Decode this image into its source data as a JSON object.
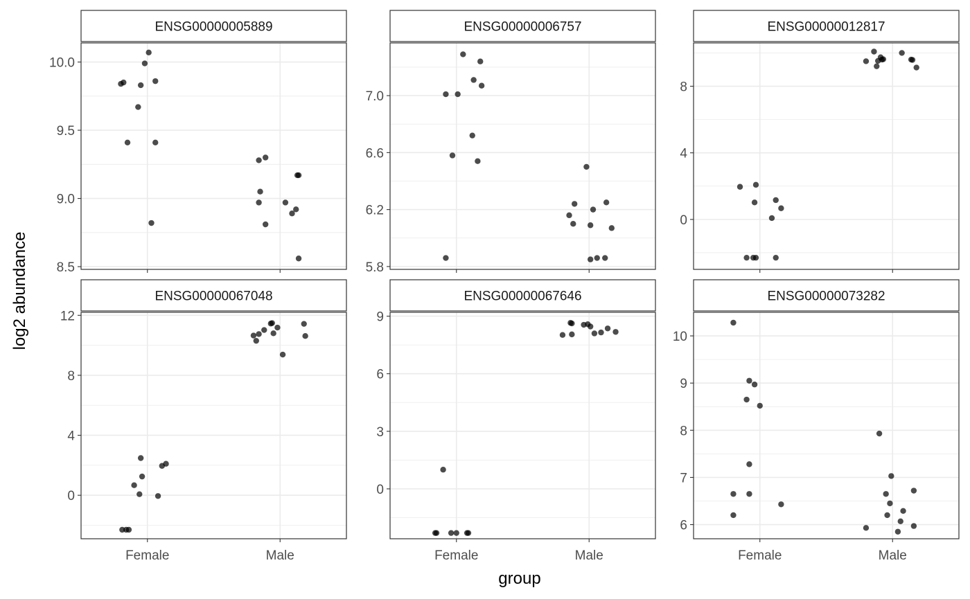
{
  "chart_data": {
    "type": "scatter",
    "xlabel": "group",
    "ylabel": "log2 abundance",
    "categories": [
      "Female",
      "Male"
    ],
    "grid": true,
    "point_color": "#000000",
    "panel_border_color": "#333333",
    "strip_fill": "#ffffff",
    "gridline_color": "#ebebeb",
    "panels": [
      {
        "id": "ENSG00000005889",
        "ylim": [
          8.48,
          10.14
        ],
        "yticks": [
          8.5,
          9.0,
          9.5,
          10.0
        ],
        "ytick_labels": [
          "8.5",
          "9.0",
          "9.5",
          "10.0"
        ],
        "x_tick_labels_shown": false,
        "points": [
          {
            "group": "Female",
            "jitter": -0.2,
            "y": 9.84
          },
          {
            "group": "Female",
            "jitter": -0.18,
            "y": 9.85
          },
          {
            "group": "Female",
            "jitter": -0.15,
            "y": 9.41
          },
          {
            "group": "Female",
            "jitter": -0.07,
            "y": 9.67
          },
          {
            "group": "Female",
            "jitter": -0.05,
            "y": 9.83
          },
          {
            "group": "Female",
            "jitter": -0.02,
            "y": 9.99
          },
          {
            "group": "Female",
            "jitter": 0.01,
            "y": 10.07
          },
          {
            "group": "Female",
            "jitter": 0.03,
            "y": 8.82
          },
          {
            "group": "Female",
            "jitter": 0.06,
            "y": 9.86
          },
          {
            "group": "Female",
            "jitter": 0.06,
            "y": 9.41
          },
          {
            "group": "Male",
            "jitter": -0.16,
            "y": 9.28
          },
          {
            "group": "Male",
            "jitter": -0.15,
            "y": 9.05
          },
          {
            "group": "Male",
            "jitter": -0.16,
            "y": 8.97
          },
          {
            "group": "Male",
            "jitter": -0.11,
            "y": 9.3
          },
          {
            "group": "Male",
            "jitter": -0.11,
            "y": 8.81
          },
          {
            "group": "Male",
            "jitter": 0.04,
            "y": 8.97
          },
          {
            "group": "Male",
            "jitter": 0.09,
            "y": 8.89
          },
          {
            "group": "Male",
            "jitter": 0.12,
            "y": 8.92
          },
          {
            "group": "Male",
            "jitter": 0.13,
            "y": 9.17
          },
          {
            "group": "Male",
            "jitter": 0.14,
            "y": 9.17
          },
          {
            "group": "Male",
            "jitter": 0.14,
            "y": 8.56
          }
        ]
      },
      {
        "id": "ENSG00000006757",
        "ylim": [
          5.78,
          7.37
        ],
        "yticks": [
          5.8,
          6.2,
          6.6,
          7.0
        ],
        "ytick_labels": [
          "5.8",
          "6.2",
          "6.6",
          "7.0"
        ],
        "x_tick_labels_shown": false,
        "points": [
          {
            "group": "Female",
            "jitter": -0.08,
            "y": 5.86
          },
          {
            "group": "Female",
            "jitter": -0.08,
            "y": 7.01
          },
          {
            "group": "Female",
            "jitter": -0.03,
            "y": 6.58
          },
          {
            "group": "Female",
            "jitter": 0.01,
            "y": 7.01
          },
          {
            "group": "Female",
            "jitter": 0.05,
            "y": 7.29
          },
          {
            "group": "Female",
            "jitter": 0.12,
            "y": 6.72
          },
          {
            "group": "Female",
            "jitter": 0.13,
            "y": 7.11
          },
          {
            "group": "Female",
            "jitter": 0.16,
            "y": 6.54
          },
          {
            "group": "Female",
            "jitter": 0.18,
            "y": 7.24
          },
          {
            "group": "Female",
            "jitter": 0.19,
            "y": 7.07
          },
          {
            "group": "Male",
            "jitter": -0.15,
            "y": 6.16
          },
          {
            "group": "Male",
            "jitter": -0.12,
            "y": 6.1
          },
          {
            "group": "Male",
            "jitter": -0.11,
            "y": 6.24
          },
          {
            "group": "Male",
            "jitter": -0.02,
            "y": 6.5
          },
          {
            "group": "Male",
            "jitter": 0.01,
            "y": 6.09
          },
          {
            "group": "Male",
            "jitter": 0.01,
            "y": 5.85
          },
          {
            "group": "Male",
            "jitter": 0.03,
            "y": 6.2
          },
          {
            "group": "Male",
            "jitter": 0.06,
            "y": 5.86
          },
          {
            "group": "Male",
            "jitter": 0.12,
            "y": 5.86
          },
          {
            "group": "Male",
            "jitter": 0.13,
            "y": 6.25
          },
          {
            "group": "Male",
            "jitter": 0.17,
            "y": 6.07
          }
        ]
      },
      {
        "id": "ENSG00000012817",
        "ylim": [
          -3.0,
          10.6
        ],
        "yticks": [
          0,
          4,
          8
        ],
        "ytick_labels": [
          "0",
          "4",
          "8"
        ],
        "x_tick_labels_shown": false,
        "points": [
          {
            "group": "Female",
            "jitter": -0.15,
            "y": 1.96
          },
          {
            "group": "Female",
            "jitter": -0.1,
            "y": -2.3
          },
          {
            "group": "Female",
            "jitter": -0.05,
            "y": -2.3
          },
          {
            "group": "Female",
            "jitter": -0.04,
            "y": 1.02
          },
          {
            "group": "Female",
            "jitter": -0.03,
            "y": 2.08
          },
          {
            "group": "Female",
            "jitter": -0.03,
            "y": -2.3
          },
          {
            "group": "Female",
            "jitter": 0.09,
            "y": 0.08
          },
          {
            "group": "Female",
            "jitter": 0.12,
            "y": 1.16
          },
          {
            "group": "Female",
            "jitter": 0.12,
            "y": -2.3
          },
          {
            "group": "Female",
            "jitter": 0.16,
            "y": 0.67
          },
          {
            "group": "Male",
            "jitter": -0.2,
            "y": 9.5
          },
          {
            "group": "Male",
            "jitter": -0.14,
            "y": 10.08
          },
          {
            "group": "Male",
            "jitter": -0.12,
            "y": 9.2
          },
          {
            "group": "Male",
            "jitter": -0.11,
            "y": 9.52
          },
          {
            "group": "Male",
            "jitter": -0.09,
            "y": 9.74
          },
          {
            "group": "Male",
            "jitter": -0.08,
            "y": 9.6
          },
          {
            "group": "Male",
            "jitter": -0.07,
            "y": 9.62
          },
          {
            "group": "Male",
            "jitter": 0.07,
            "y": 10.0
          },
          {
            "group": "Male",
            "jitter": 0.14,
            "y": 9.6
          },
          {
            "group": "Male",
            "jitter": 0.15,
            "y": 9.58
          },
          {
            "group": "Male",
            "jitter": 0.18,
            "y": 9.12
          }
        ]
      },
      {
        "id": "ENSG00000067048",
        "ylim": [
          -2.9,
          12.2
        ],
        "yticks": [
          0,
          4,
          8,
          12
        ],
        "ytick_labels": [
          "0",
          "4",
          "8",
          "12"
        ],
        "x_tick_labels_shown": true,
        "points": [
          {
            "group": "Female",
            "jitter": -0.19,
            "y": -2.3
          },
          {
            "group": "Female",
            "jitter": -0.16,
            "y": -2.3
          },
          {
            "group": "Female",
            "jitter": -0.14,
            "y": -2.3
          },
          {
            "group": "Female",
            "jitter": -0.1,
            "y": 0.67
          },
          {
            "group": "Female",
            "jitter": -0.06,
            "y": 0.07
          },
          {
            "group": "Female",
            "jitter": -0.05,
            "y": 2.48
          },
          {
            "group": "Female",
            "jitter": -0.04,
            "y": 1.25
          },
          {
            "group": "Female",
            "jitter": 0.08,
            "y": -0.05
          },
          {
            "group": "Female",
            "jitter": 0.11,
            "y": 1.96
          },
          {
            "group": "Female",
            "jitter": 0.14,
            "y": 2.1
          },
          {
            "group": "Male",
            "jitter": -0.2,
            "y": 10.65
          },
          {
            "group": "Male",
            "jitter": -0.18,
            "y": 10.3
          },
          {
            "group": "Male",
            "jitter": -0.16,
            "y": 10.75
          },
          {
            "group": "Male",
            "jitter": -0.12,
            "y": 11.02
          },
          {
            "group": "Male",
            "jitter": -0.07,
            "y": 11.45
          },
          {
            "group": "Male",
            "jitter": -0.06,
            "y": 11.48
          },
          {
            "group": "Male",
            "jitter": -0.05,
            "y": 10.8
          },
          {
            "group": "Male",
            "jitter": -0.02,
            "y": 11.18
          },
          {
            "group": "Male",
            "jitter": 0.02,
            "y": 9.38
          },
          {
            "group": "Male",
            "jitter": 0.18,
            "y": 11.43
          },
          {
            "group": "Male",
            "jitter": 0.19,
            "y": 10.62
          }
        ]
      },
      {
        "id": "ENSG00000067646",
        "ylim": [
          -2.6,
          9.2
        ],
        "yticks": [
          0,
          3,
          6,
          9
        ],
        "ytick_labels": [
          "0",
          "3",
          "6",
          "9"
        ],
        "x_tick_labels_shown": true,
        "points": [
          {
            "group": "Female",
            "jitter": -0.16,
            "y": -2.3
          },
          {
            "group": "Female",
            "jitter": -0.15,
            "y": -2.3
          },
          {
            "group": "Female",
            "jitter": -0.1,
            "y": 1.0
          },
          {
            "group": "Female",
            "jitter": -0.04,
            "y": -2.3
          },
          {
            "group": "Female",
            "jitter": 0.0,
            "y": -2.3
          },
          {
            "group": "Female",
            "jitter": 0.08,
            "y": -2.3
          },
          {
            "group": "Female",
            "jitter": 0.09,
            "y": -2.3
          },
          {
            "group": "Male",
            "jitter": -0.2,
            "y": 8.02
          },
          {
            "group": "Male",
            "jitter": -0.14,
            "y": 8.65
          },
          {
            "group": "Male",
            "jitter": -0.13,
            "y": 8.05
          },
          {
            "group": "Male",
            "jitter": -0.13,
            "y": 8.62
          },
          {
            "group": "Male",
            "jitter": -0.04,
            "y": 8.55
          },
          {
            "group": "Male",
            "jitter": -0.01,
            "y": 8.58
          },
          {
            "group": "Male",
            "jitter": 0.01,
            "y": 8.46
          },
          {
            "group": "Male",
            "jitter": 0.04,
            "y": 8.1
          },
          {
            "group": "Male",
            "jitter": 0.09,
            "y": 8.15
          },
          {
            "group": "Male",
            "jitter": 0.14,
            "y": 8.36
          },
          {
            "group": "Male",
            "jitter": 0.2,
            "y": 8.18
          }
        ]
      },
      {
        "id": "ENSG00000073282",
        "ylim": [
          5.7,
          10.5
        ],
        "yticks": [
          6,
          7,
          8,
          9,
          10
        ],
        "ytick_labels": [
          "6",
          "7",
          "8",
          "9",
          "10"
        ],
        "x_tick_labels_shown": true,
        "points": [
          {
            "group": "Female",
            "jitter": -0.2,
            "y": 10.28
          },
          {
            "group": "Female",
            "jitter": -0.2,
            "y": 6.65
          },
          {
            "group": "Female",
            "jitter": -0.2,
            "y": 6.2
          },
          {
            "group": "Female",
            "jitter": -0.1,
            "y": 8.65
          },
          {
            "group": "Female",
            "jitter": -0.08,
            "y": 9.05
          },
          {
            "group": "Female",
            "jitter": -0.08,
            "y": 7.28
          },
          {
            "group": "Female",
            "jitter": -0.08,
            "y": 6.65
          },
          {
            "group": "Female",
            "jitter": -0.04,
            "y": 8.97
          },
          {
            "group": "Female",
            "jitter": 0.0,
            "y": 8.52
          },
          {
            "group": "Female",
            "jitter": 0.16,
            "y": 6.43
          },
          {
            "group": "Male",
            "jitter": -0.2,
            "y": 5.93
          },
          {
            "group": "Male",
            "jitter": -0.1,
            "y": 7.93
          },
          {
            "group": "Male",
            "jitter": -0.05,
            "y": 6.65
          },
          {
            "group": "Male",
            "jitter": -0.04,
            "y": 6.2
          },
          {
            "group": "Male",
            "jitter": -0.02,
            "y": 6.45
          },
          {
            "group": "Male",
            "jitter": -0.01,
            "y": 7.03
          },
          {
            "group": "Male",
            "jitter": 0.04,
            "y": 5.85
          },
          {
            "group": "Male",
            "jitter": 0.06,
            "y": 6.07
          },
          {
            "group": "Male",
            "jitter": 0.08,
            "y": 6.29
          },
          {
            "group": "Male",
            "jitter": 0.16,
            "y": 5.97
          },
          {
            "group": "Male",
            "jitter": 0.16,
            "y": 6.72
          }
        ]
      }
    ]
  }
}
